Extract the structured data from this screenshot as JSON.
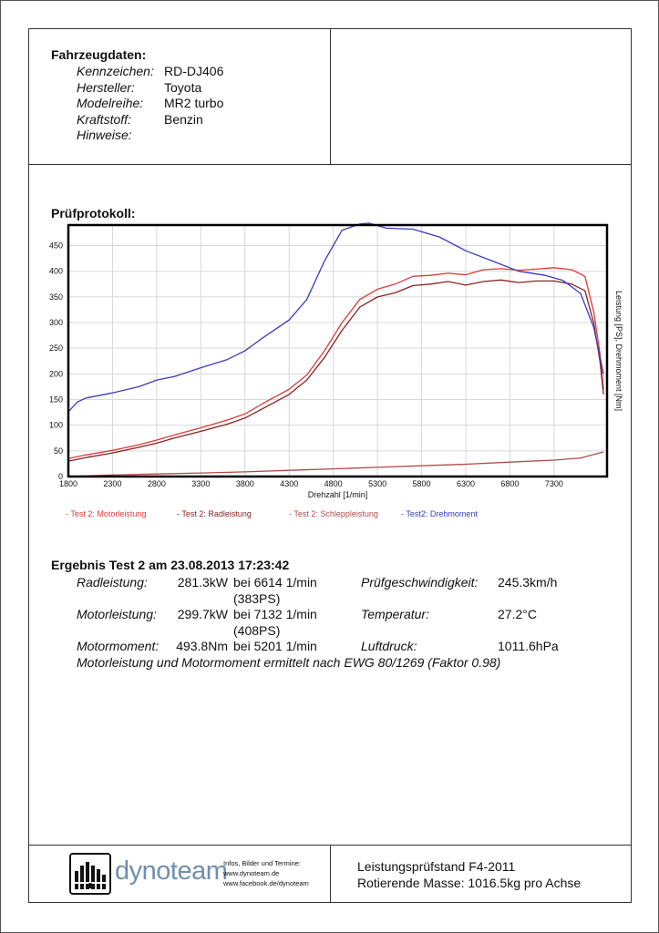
{
  "vehicle": {
    "title": "Fahrzeugdaten:",
    "fields": [
      {
        "label": "Kennzeichen:",
        "value": "RD-DJ406"
      },
      {
        "label": "Hersteller:",
        "value": "Toyota"
      },
      {
        "label": "Modelreihe:",
        "value": "MR2 turbo"
      },
      {
        "label": "Kraftstoff:",
        "value": "Benzin"
      },
      {
        "label": "Hinweise:",
        "value": ""
      }
    ]
  },
  "protocol": {
    "title": "Prüfprotokoll:"
  },
  "chart_data": {
    "type": "line",
    "title": "",
    "xlabel": "Drehzahl [1/min]",
    "ylabel": "Leistung [PS], Drehmoment [Nm]",
    "xlim": [
      1800,
      7900
    ],
    "ylim": [
      0,
      490
    ],
    "x_ticks": [
      1800,
      2300,
      2800,
      3300,
      3800,
      4300,
      4800,
      5300,
      5800,
      6300,
      6800,
      7300
    ],
    "y_ticks": [
      0,
      50,
      100,
      150,
      200,
      250,
      300,
      350,
      400,
      450
    ],
    "grid": true,
    "legend_position": "bottom",
    "series": [
      {
        "name": "- Test 2: Motorleistung",
        "color": "#e03a3a",
        "points": [
          [
            1800,
            35
          ],
          [
            2000,
            42
          ],
          [
            2300,
            51
          ],
          [
            2600,
            62
          ],
          [
            2800,
            71
          ],
          [
            3000,
            81
          ],
          [
            3300,
            95
          ],
          [
            3600,
            110
          ],
          [
            3800,
            122
          ],
          [
            4000,
            142
          ],
          [
            4300,
            170
          ],
          [
            4500,
            198
          ],
          [
            4700,
            245
          ],
          [
            4900,
            300
          ],
          [
            5100,
            345
          ],
          [
            5300,
            365
          ],
          [
            5500,
            375
          ],
          [
            5700,
            390
          ],
          [
            5900,
            392
          ],
          [
            6100,
            396
          ],
          [
            6300,
            393
          ],
          [
            6500,
            403
          ],
          [
            6700,
            405
          ],
          [
            6900,
            402
          ],
          [
            7100,
            404
          ],
          [
            7300,
            407
          ],
          [
            7500,
            403
          ],
          [
            7650,
            390
          ],
          [
            7750,
            320
          ],
          [
            7820,
            240
          ],
          [
            7860,
            170
          ]
        ]
      },
      {
        "name": "- Test 2: Radleistung",
        "color": "#8b2222",
        "points": [
          [
            1800,
            30
          ],
          [
            2000,
            37
          ],
          [
            2300,
            46
          ],
          [
            2600,
            57
          ],
          [
            2800,
            65
          ],
          [
            3000,
            75
          ],
          [
            3300,
            88
          ],
          [
            3600,
            102
          ],
          [
            3800,
            114
          ],
          [
            4000,
            132
          ],
          [
            4300,
            160
          ],
          [
            4500,
            188
          ],
          [
            4700,
            232
          ],
          [
            4900,
            285
          ],
          [
            5100,
            330
          ],
          [
            5300,
            350
          ],
          [
            5500,
            358
          ],
          [
            5700,
            372
          ],
          [
            5900,
            375
          ],
          [
            6100,
            380
          ],
          [
            6300,
            373
          ],
          [
            6500,
            380
          ],
          [
            6700,
            383
          ],
          [
            6900,
            378
          ],
          [
            7100,
            381
          ],
          [
            7300,
            381
          ],
          [
            7500,
            375
          ],
          [
            7650,
            362
          ],
          [
            7750,
            298
          ],
          [
            7820,
            225
          ],
          [
            7860,
            160
          ]
        ]
      },
      {
        "name": "- Test 2: Schleppleistung",
        "color": "#b04a4a",
        "points": [
          [
            1800,
            0
          ],
          [
            2300,
            3
          ],
          [
            2800,
            5
          ],
          [
            3300,
            7
          ],
          [
            3800,
            9
          ],
          [
            4300,
            12
          ],
          [
            4800,
            15
          ],
          [
            5300,
            18
          ],
          [
            5800,
            21
          ],
          [
            6300,
            24
          ],
          [
            6800,
            28
          ],
          [
            7300,
            32
          ],
          [
            7600,
            36
          ],
          [
            7750,
            43
          ],
          [
            7860,
            48
          ]
        ]
      },
      {
        "name": "- Test2: Drehmoment",
        "color": "#3a3ac0",
        "points": [
          [
            1800,
            126
          ],
          [
            1900,
            145
          ],
          [
            2000,
            153
          ],
          [
            2300,
            163
          ],
          [
            2600,
            175
          ],
          [
            2800,
            188
          ],
          [
            3000,
            195
          ],
          [
            3300,
            212
          ],
          [
            3600,
            228
          ],
          [
            3800,
            245
          ],
          [
            4000,
            270
          ],
          [
            4300,
            305
          ],
          [
            4500,
            345
          ],
          [
            4700,
            420
          ],
          [
            4900,
            480
          ],
          [
            5100,
            492
          ],
          [
            5201,
            493.8
          ],
          [
            5400,
            484
          ],
          [
            5700,
            482
          ],
          [
            6000,
            467
          ],
          [
            6300,
            440
          ],
          [
            6600,
            420
          ],
          [
            6900,
            400
          ],
          [
            7200,
            392
          ],
          [
            7400,
            382
          ],
          [
            7600,
            357
          ],
          [
            7750,
            290
          ],
          [
            7860,
            200
          ]
        ]
      }
    ]
  },
  "results": {
    "title": "Ergebnis Test 2 am 23.08.2013 17:23:42",
    "rows": [
      {
        "label": "Radleistung:",
        "value": "281.3kW",
        "detail": "bei 6614 1/min (383PS)",
        "label2": "Prüfgeschwindigkeit:",
        "value2": "245.3km/h"
      },
      {
        "label": "Motorleistung:",
        "value": "299.7kW",
        "detail": "bei 7132 1/min (408PS)",
        "label2": "Temperatur:",
        "value2": "27.2°C"
      },
      {
        "label": "Motormoment:",
        "value": "493.8Nm",
        "detail": "bei 5201 1/min",
        "label2": "Luftdruck:",
        "value2": "1011.6hPa"
      }
    ],
    "note": "Motorleistung und Motormoment ermittelt nach EWG 80/1269 (Faktor 0.98)"
  },
  "footer": {
    "brand": "dynoteam",
    "info": [
      "Infos, Bilder und Termine:",
      "www.dynoteam.de",
      "www.facebook.de/dynoteam"
    ],
    "stand": [
      "Leistungsprüfstand F4-2011",
      "Rotierende Masse: 1016.5kg pro Achse"
    ],
    "logo_icon": "dyno-bars-icon"
  }
}
